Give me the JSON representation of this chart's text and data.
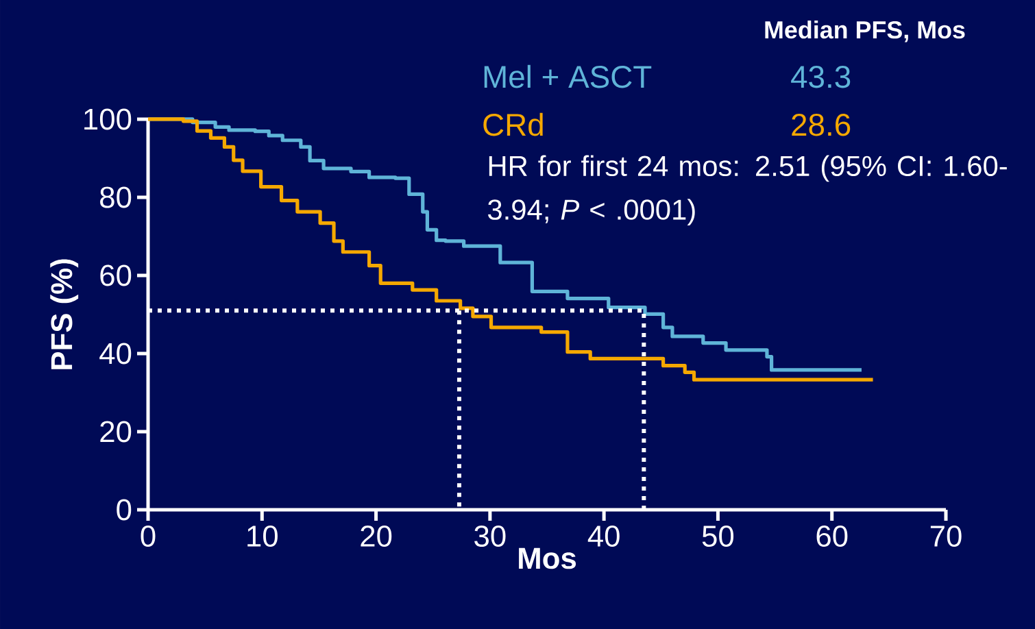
{
  "chart_data": {
    "type": "step",
    "xlabel": "Mos",
    "ylabel": "PFS (%)",
    "legend_title": "Median PFS, Mos",
    "legend": "top right",
    "xlim": [
      0,
      70
    ],
    "ylim": [
      0,
      100
    ],
    "xticks": [
      0,
      10,
      20,
      30,
      40,
      50,
      60,
      70
    ],
    "yticks": [
      0,
      20,
      40,
      60,
      80,
      100
    ],
    "annotations": [
      "43.3",
      "28.6",
      "HR for first 24 mos: 2.51 (95% CI: 1.60-3.94; *P* < .0001)"
    ],
    "series": [
      {
        "name": "Mel + ASCT",
        "color": "#5fb4d8",
        "x": [
          0,
          3.9,
          5.9,
          7.1,
          9.4,
          10.6,
          11.8,
          13.4,
          14.2,
          15.4,
          17.8,
          19.4,
          21.7,
          22.9,
          24.1,
          24.5,
          25.3,
          26.1,
          27.7,
          30.9,
          33.7,
          36.8,
          40.4,
          43.6,
          45.2,
          46.0,
          48.7,
          50.7,
          54.3,
          54.7,
          62.6
        ],
        "values": [
          100,
          99.2,
          98,
          97.2,
          96.9,
          95.8,
          94.6,
          92.9,
          89.4,
          87.4,
          86.6,
          85.1,
          84.9,
          80.8,
          76.3,
          71.7,
          69.0,
          68.8,
          67.5,
          63.3,
          55.9,
          54.1,
          51.8,
          50.1,
          46.7,
          44.4,
          42.7,
          40.9,
          39.2,
          35.8,
          35.8
        ]
      },
      {
        "name": "CRd",
        "color": "#f5a800",
        "x": [
          0,
          3.1,
          4.3,
          5.5,
          6.7,
          7.5,
          8.3,
          9.9,
          11.7,
          13.1,
          15.1,
          16.3,
          17.1,
          19.4,
          20.4,
          23.2,
          25.3,
          27.4,
          28.5,
          30.1,
          34.5,
          36.8,
          38.8,
          42.8,
          45.2,
          47.1,
          47.9,
          63.6
        ],
        "values": [
          100,
          99.5,
          97,
          95.2,
          92.9,
          89.5,
          86.7,
          82.7,
          79.2,
          76.3,
          73.4,
          68.8,
          66,
          62.5,
          58,
          56.3,
          53.5,
          51.6,
          49.5,
          46.7,
          45.5,
          40.4,
          38.7,
          38.7,
          36.9,
          35.2,
          33.3,
          33.3
        ]
      },
      {
        "type": "line",
        "line_style": "dotted",
        "color": "#ffffff",
        "x": [
          0,
          43.5,
          43.5
        ],
        "values": [
          51,
          51,
          0
        ]
      },
      {
        "type": "line",
        "line_style": "dotted",
        "color": "#ffffff",
        "x": [
          27.3,
          27.3
        ],
        "values": [
          51,
          0
        ]
      }
    ]
  }
}
